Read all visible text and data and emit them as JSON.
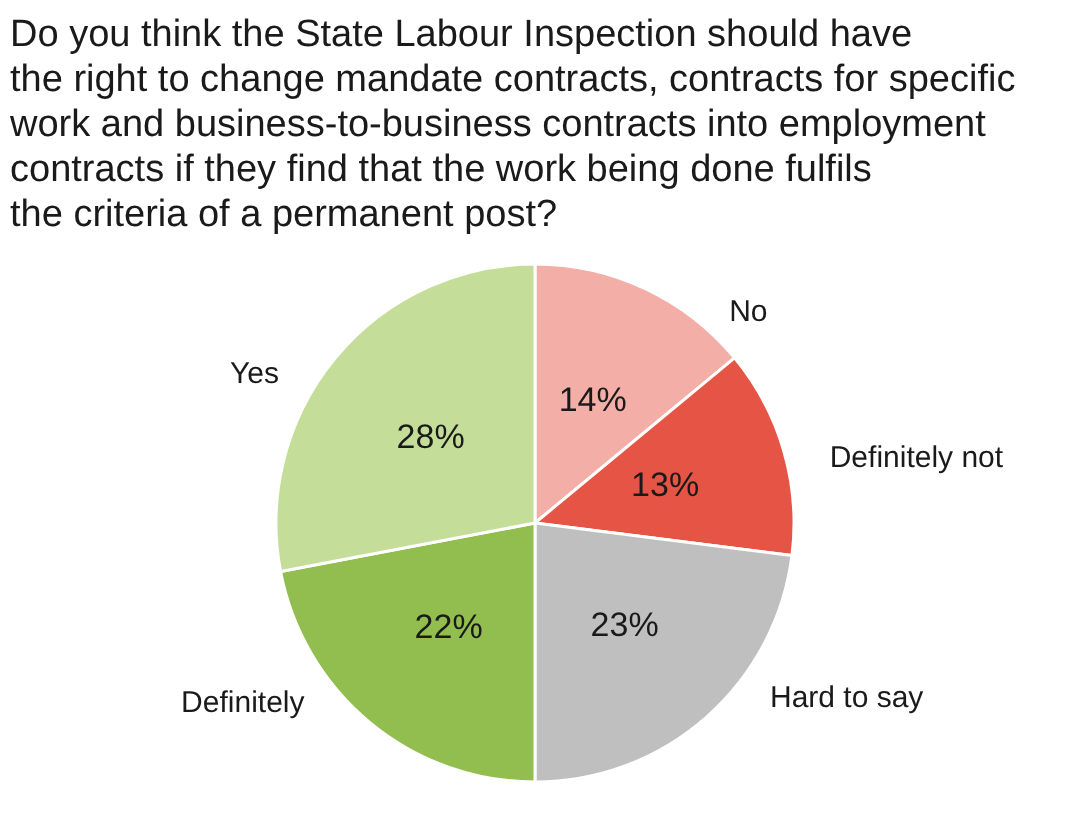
{
  "chart_data": {
    "type": "pie",
    "title": "Do you think the State Labour Inspection should have\nthe right to change mandate contracts, contracts for specific\nwork and business-to-business contracts into employment\ncontracts if they find that the work being done fulfils\nthe criteria of a permanent post?",
    "categories": [
      "No",
      "Definitely not",
      "Hard to say",
      "Definitely",
      "Yes"
    ],
    "values": [
      14,
      13,
      23,
      22,
      28
    ],
    "colors": [
      "#f3aea7",
      "#e55444",
      "#bfbfbf",
      "#92bd4f",
      "#c4de9a"
    ],
    "value_labels": [
      "14%",
      "13%",
      "23%",
      "22%",
      "28%"
    ]
  }
}
